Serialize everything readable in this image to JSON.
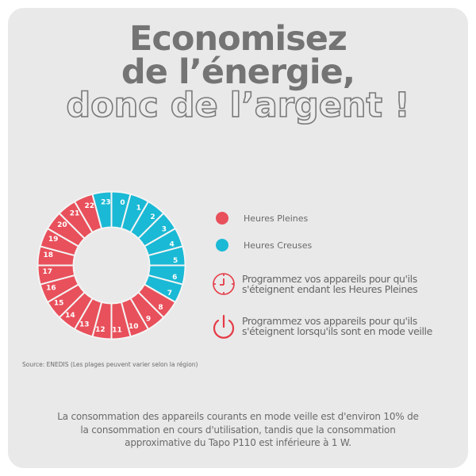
{
  "title": {
    "line1": "Economisez",
    "line2": "de l’énergie,",
    "line3": "donc de l’argent !"
  },
  "colors": {
    "background": "#e9e9e9",
    "heures_pleines": "#e8505b",
    "heures_creuses": "#1ab9d5",
    "title_text": "#747474",
    "icon_red": "#e53a45"
  },
  "chart_data": {
    "type": "pie",
    "variant": "donut",
    "title": "",
    "categories": [
      "0",
      "1",
      "2",
      "3",
      "4",
      "5",
      "6",
      "7",
      "8",
      "9",
      "10",
      "11",
      "12",
      "13",
      "14",
      "15",
      "16",
      "17",
      "18",
      "19",
      "20",
      "21",
      "22",
      "23"
    ],
    "values": [
      1,
      1,
      1,
      1,
      1,
      1,
      1,
      1,
      1,
      1,
      1,
      1,
      1,
      1,
      1,
      1,
      1,
      1,
      1,
      1,
      1,
      1,
      1,
      1
    ],
    "segment_type": [
      "creuses",
      "creuses",
      "creuses",
      "creuses",
      "creuses",
      "creuses",
      "creuses",
      "creuses",
      "pleines",
      "pleines",
      "pleines",
      "pleines",
      "pleines",
      "pleines",
      "pleines",
      "pleines",
      "pleines",
      "pleines",
      "pleines",
      "pleines",
      "pleines",
      "pleines",
      "pleines",
      "creuses"
    ],
    "legend": [
      {
        "key": "pleines",
        "label": "Heures Pleines",
        "color": "#e8505b"
      },
      {
        "key": "creuses",
        "label": "Heures Creuses",
        "color": "#1ab9d5"
      }
    ],
    "legend_position": "right"
  },
  "legend": {
    "pleines": "Heures Pleines",
    "creuses": "Heures Creuses"
  },
  "tips": [
    {
      "icon": "clock-icon",
      "line1": "Programmez vos appareils pour qu'ils",
      "line2": "s'éteignent endant les Heures Pleines"
    },
    {
      "icon": "power-icon",
      "line1": "Programmez vos appareils pour qu'ils",
      "line2": "s'éteignent lorsqu'ils sont en mode veille"
    }
  ],
  "source": "Source: ENEDIS (Les plages peuvent varier selon la région)",
  "note": {
    "line1": "La consommation des appareils courants en mode veille est d'environ 10% de",
    "line2": "la consommation en cours d'utilisation, tandis que la consommation",
    "line3": "approximative du Tapo P110 est inférieure à 1 W."
  }
}
